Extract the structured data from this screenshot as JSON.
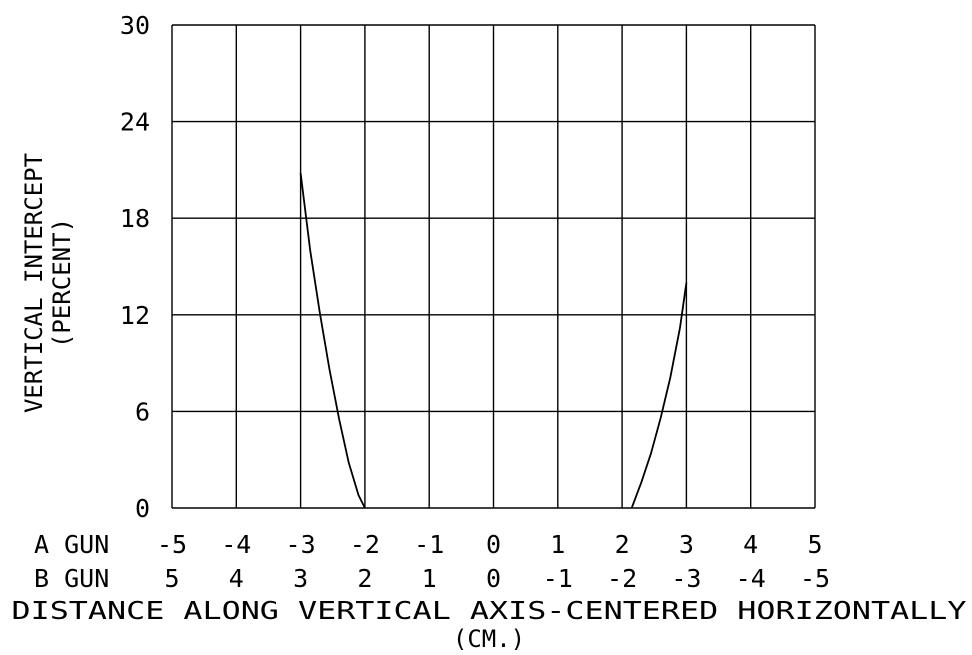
{
  "chart_data": {
    "type": "line",
    "title": "",
    "ylabel_line1": "VERTICAL INTERCEPT",
    "ylabel_line2": "(PERCENT)",
    "xlabel_line1": "DISTANCE ALONG VERTICAL AXIS-CENTERED HORIZONTALLY",
    "xlabel_line2": "(CM.)",
    "xlim": [
      -5,
      5
    ],
    "ylim": [
      0,
      30
    ],
    "grid": true,
    "y_ticks": [
      "0",
      "6",
      "12",
      "18",
      "24",
      "30"
    ],
    "x_rows": [
      {
        "label": "A GUN",
        "ticks": [
          "-5",
          "-4",
          "-3",
          "-2",
          "-1",
          "0",
          "1",
          "2",
          "3",
          "4",
          "5"
        ]
      },
      {
        "label": "B GUN",
        "ticks": [
          "5",
          "4",
          "3",
          "2",
          "1",
          "0",
          "-1",
          "-2",
          "-3",
          "-4",
          "-5"
        ]
      }
    ],
    "series": [
      {
        "x": [
          -3.0,
          -2.85,
          -2.7,
          -2.55,
          -2.4,
          -2.25,
          -2.1,
          -2.0
        ],
        "y": [
          20.8,
          16.0,
          12.1,
          8.6,
          5.5,
          2.8,
          0.8,
          0.0
        ]
      },
      {
        "x": [
          2.15,
          2.3,
          2.45,
          2.6,
          2.75,
          2.9,
          3.0
        ],
        "y": [
          0.0,
          1.6,
          3.4,
          5.6,
          8.1,
          11.2,
          14.0
        ]
      }
    ]
  }
}
